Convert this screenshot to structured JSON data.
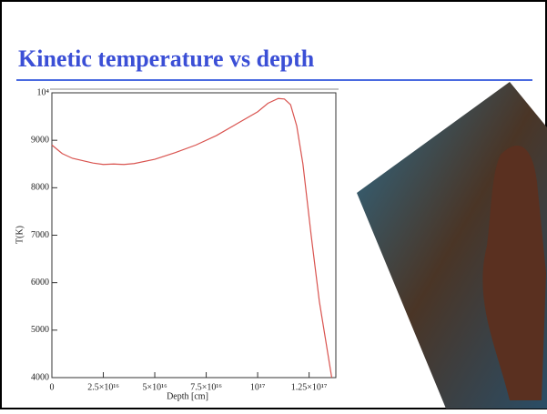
{
  "chart_data": {
    "type": "line",
    "title": "Kinetic temperature vs depth",
    "x_label": "Depth [cm]",
    "y_label": "T(K)",
    "x": [
      0,
      5000000000000000.0,
      1e+16,
      2e+16,
      2.5e+16,
      3e+16,
      3.5e+16,
      4e+16,
      5e+16,
      6e+16,
      7e+16,
      8e+16,
      9e+16,
      1e+17,
      1.05e+17,
      1.1e+17,
      1.13e+17,
      1.16e+17,
      1.19e+17,
      1.22e+17,
      1.26e+17,
      1.3e+17,
      1.33e+17,
      1.36e+17
    ],
    "values": [
      8900,
      8720,
      8620,
      8520,
      8490,
      8500,
      8490,
      8510,
      8600,
      8740,
      8900,
      9100,
      9350,
      9600,
      9780,
      9880,
      9870,
      9750,
      9300,
      8500,
      7000,
      5600,
      4800,
      4000
    ],
    "color": "#d9534f",
    "xlim": [
      0,
      1.38e+17
    ],
    "ylim": [
      4000,
      10000
    ],
    "xticks": [
      0,
      {
        "value": 2.5e+16,
        "label": "2.5×10¹⁶"
      },
      {
        "value": 5e+16,
        "label": "5×10¹⁶"
      },
      {
        "value": 7.5e+16,
        "label": "7.5×10¹⁶"
      },
      {
        "value": 1e+17,
        "label": "10¹⁷"
      },
      {
        "value": 1.25e+17,
        "label": "1.25×10¹⁷"
      }
    ],
    "yticks": [
      4000,
      5000,
      6000,
      7000,
      8000,
      9000,
      {
        "value": 10000,
        "label": "10⁴"
      }
    ]
  }
}
